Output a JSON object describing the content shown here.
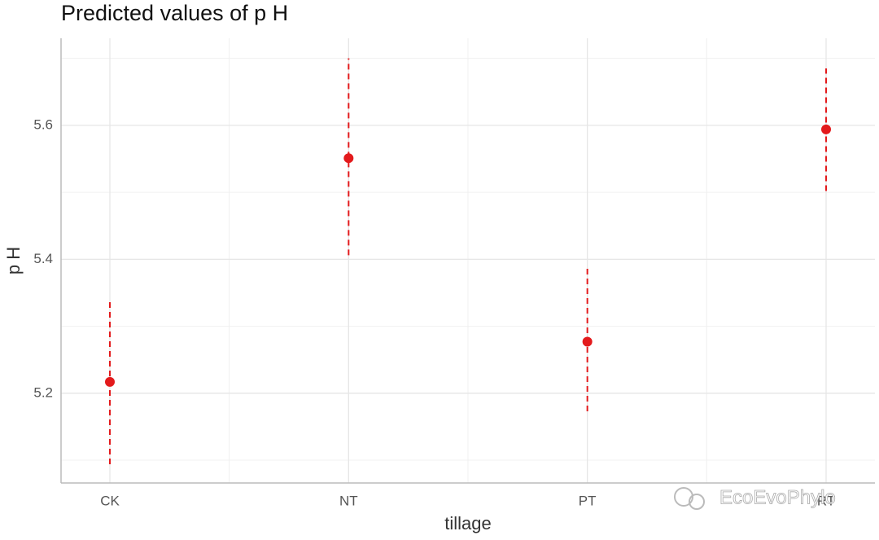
{
  "chart_data": {
    "type": "pointrange",
    "title": "Predicted values of p H",
    "x_label": "tillage",
    "y_label": "p H",
    "categories": [
      "CK",
      "NT",
      "PT",
      "RT"
    ],
    "series": [
      {
        "name": "pH",
        "color": "#e31a1c",
        "values": [
          5.217,
          5.551,
          5.277,
          5.594
        ],
        "low": [
          5.094,
          5.406,
          5.173,
          5.502
        ],
        "high": [
          5.339,
          5.7,
          5.389,
          5.685
        ]
      }
    ],
    "ylim": [
      5.066,
      5.73
    ],
    "yticks": [
      5.2,
      5.4,
      5.6
    ],
    "grid": true,
    "watermark": "EcoEvoPhylo"
  }
}
